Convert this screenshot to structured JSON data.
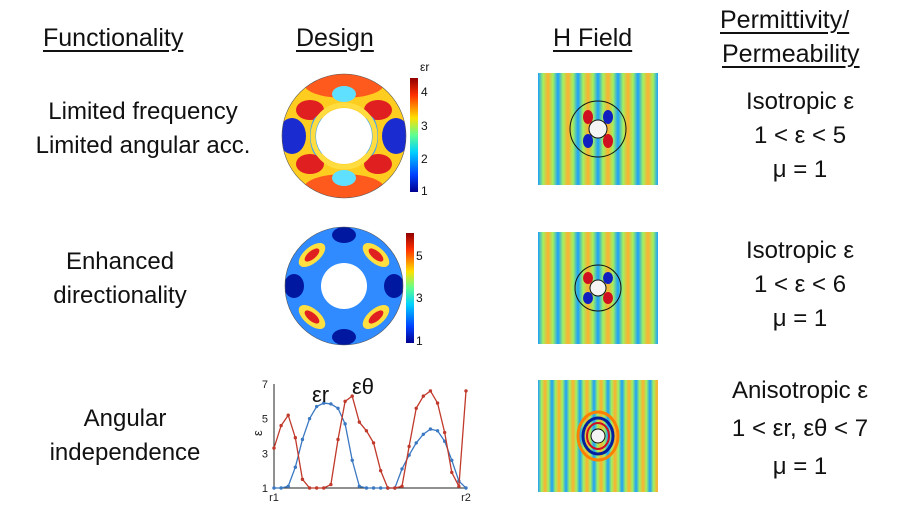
{
  "headers": {
    "functionality": "Functionality",
    "design": "Design",
    "h_field": "H Field",
    "permittivity": [
      "Permittivity/",
      "Permeability"
    ]
  },
  "rows": [
    {
      "functionality": [
        "Limited frequency",
        "Limited angular acc."
      ],
      "permittivity": [
        "Isotropic ε",
        "1 < ε < 5",
        "μ = 1"
      ],
      "colorbar": {
        "label": "εr",
        "ticks": [
          "4",
          "3",
          "2",
          "1"
        ]
      }
    },
    {
      "functionality": [
        "Enhanced",
        "directionality"
      ],
      "permittivity": [
        "Isotropic ε",
        "1 < ε < 6",
        "μ = 1"
      ],
      "colorbar": {
        "label": "",
        "ticks": [
          "5",
          "3",
          "1"
        ]
      }
    },
    {
      "functionality": [
        "Angular",
        "independence"
      ],
      "permittivity": [
        "Anisotropic ε",
        "1 < εr, εθ < 7",
        "μ = 1"
      ]
    }
  ],
  "chart_data": {
    "type": "line",
    "ylabel": "ε",
    "yticks": [
      "7",
      "5",
      "3",
      "1"
    ],
    "ylim": [
      1,
      7
    ],
    "xticks": [
      "r1",
      "r2"
    ],
    "x": [
      0,
      1,
      2,
      3,
      4,
      5,
      6,
      7,
      8,
      9,
      10,
      11,
      12,
      13,
      14,
      15,
      16,
      17,
      18,
      19,
      20,
      21,
      22,
      23,
      24,
      25,
      26,
      27
    ],
    "series": [
      {
        "name": "εr",
        "color": "#3a78c2",
        "values": [
          1,
          1,
          1.1,
          2.2,
          3.8,
          5.0,
          5.7,
          5.9,
          5.85,
          5.6,
          4.7,
          2.6,
          1.1,
          1,
          1,
          1,
          1,
          1,
          2.1,
          2.9,
          3.6,
          4.1,
          4.4,
          4.3,
          3.7,
          2.6,
          1.4,
          1
        ]
      },
      {
        "name": "εθ",
        "color": "#c0392b",
        "values": [
          3.3,
          4.6,
          5.2,
          3.9,
          1.5,
          1,
          1,
          1,
          1.2,
          3.8,
          6.0,
          6.3,
          4.8,
          4.3,
          3.6,
          2.0,
          1,
          1,
          1.1,
          3.4,
          5.6,
          6.3,
          6.6,
          5.9,
          4.2,
          1.9,
          1.1,
          6.6
        ]
      }
    ],
    "annotations": [
      "εr",
      "εθ"
    ]
  }
}
